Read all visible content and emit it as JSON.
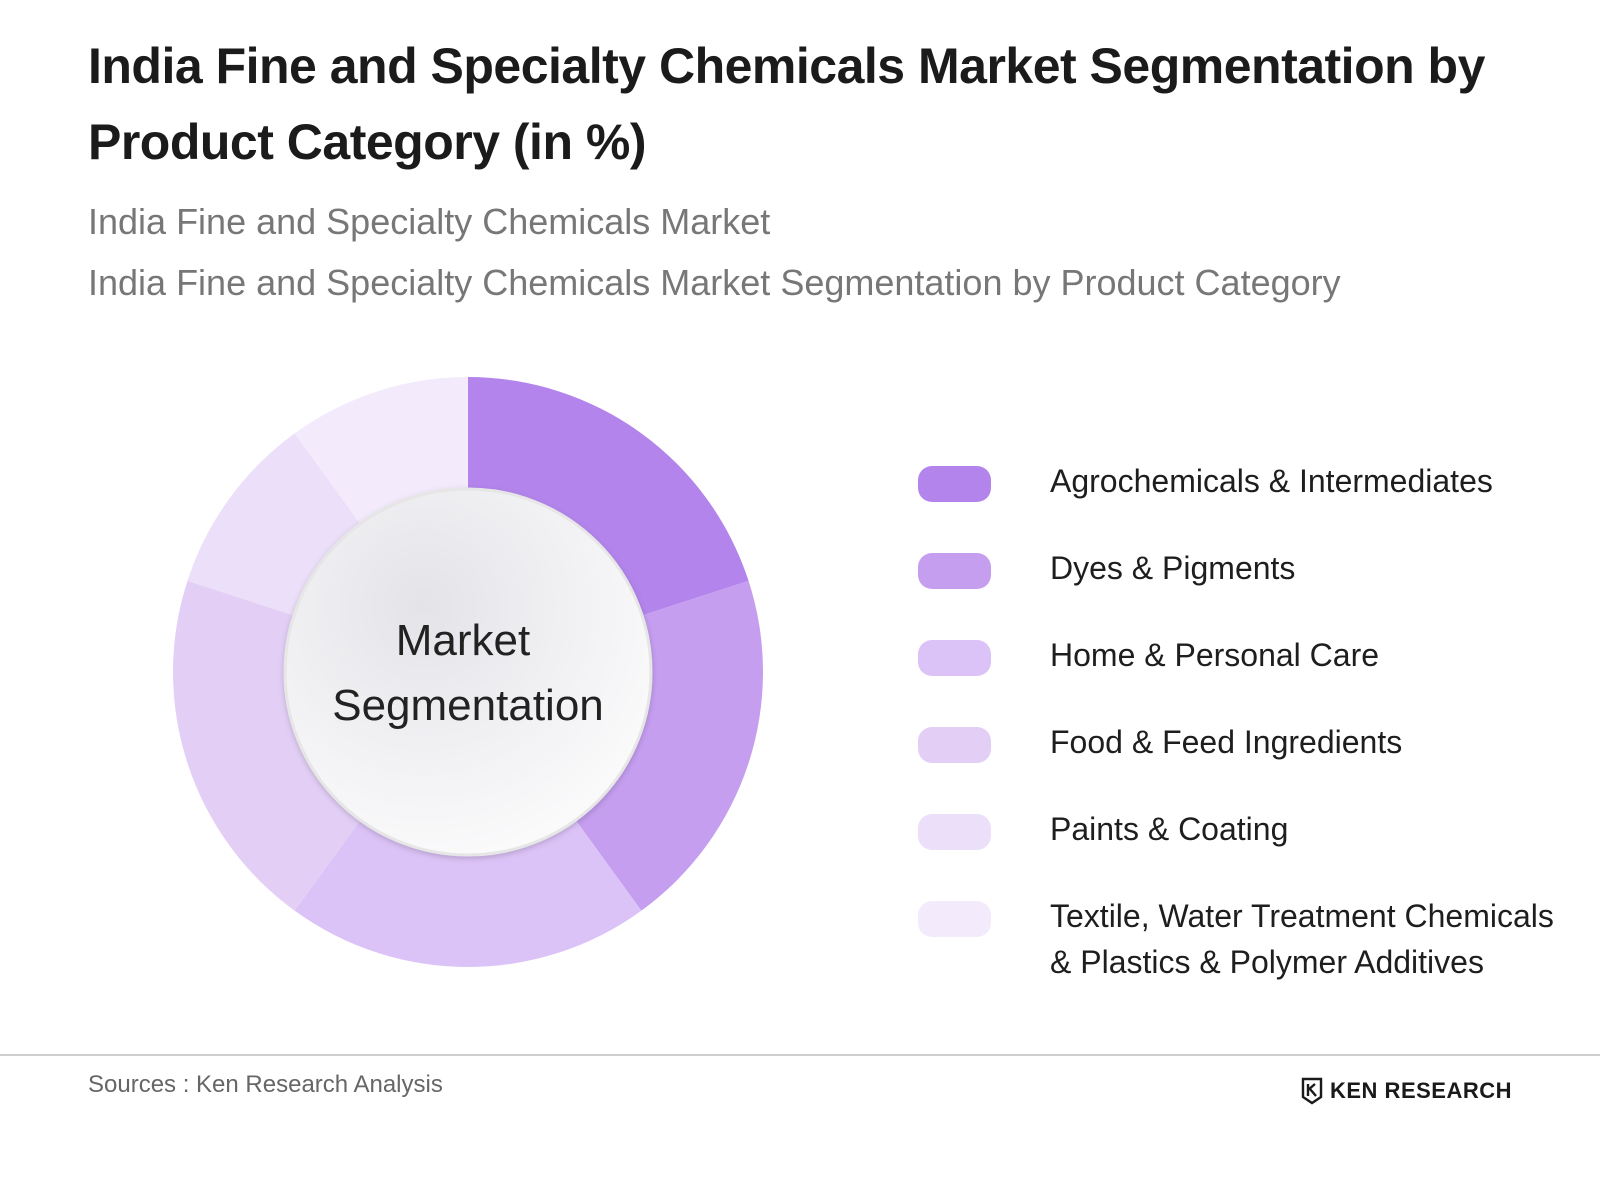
{
  "header": {
    "title": "India Fine and Specialty Chemicals Market Segmentation by Product Category (in %)",
    "subtitle_1": "India Fine and Specialty Chemicals Market",
    "subtitle_2": "India Fine and Specialty Chemicals Market Segmentation by Product Category"
  },
  "chart_data": {
    "type": "pie",
    "variant": "donut",
    "center_label": [
      "Market",
      "Segmentation"
    ],
    "categories": [
      "Agrochemicals & Intermediates",
      "Dyes & Pigments",
      "Home & Personal Care",
      "Food & Feed Ingredients",
      "Paints & Coating",
      "Textile, Water Treatment Chemicals & Plastics & Polymer Additives"
    ],
    "legend_lines": [
      [
        "Agrochemicals & Intermediates"
      ],
      [
        "Dyes & Pigments"
      ],
      [
        "Home & Personal Care"
      ],
      [
        "Food & Feed Ingredients"
      ],
      [
        "Paints & Coating"
      ],
      [
        "Textile, Water Treatment Chemicals",
        "& Plastics & Polymer Additives"
      ]
    ],
    "values": [
      20,
      20,
      20,
      20,
      10,
      10
    ],
    "colors": [
      "#b385ec",
      "#c59ef0",
      "#dcc3f7",
      "#e3cff6",
      "#ecdff9",
      "#f3ebfb"
    ],
    "legend_position": "right"
  },
  "footer": {
    "source": "Sources : Ken Research Analysis",
    "brand": "KEN RESEARCH"
  }
}
